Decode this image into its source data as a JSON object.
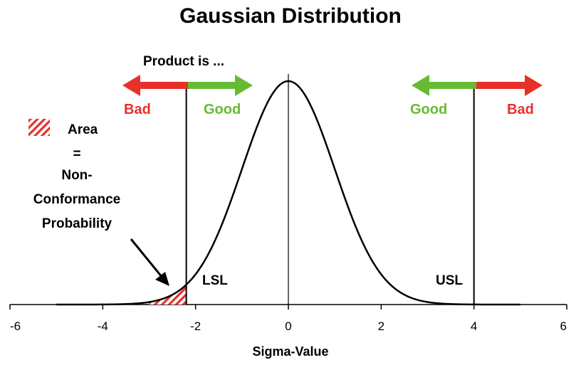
{
  "chart_data": {
    "type": "line",
    "title": "Gaussian Distribution",
    "xlabel": "Sigma-Value",
    "ylabel": "",
    "xlim": [
      -6,
      6
    ],
    "xticks": [
      -6,
      -4,
      -2,
      0,
      2,
      4,
      6
    ],
    "x_tick_labels": [
      "-6",
      "-4",
      "-2",
      "0",
      "2",
      "4",
      "6"
    ],
    "grid": false,
    "curve": {
      "distribution": "normal",
      "mean": 0,
      "std": 1,
      "x_range": [
        -5,
        5
      ]
    },
    "limits": [
      {
        "label": "LSL",
        "x": -2.2
      },
      {
        "label": "USL",
        "x": 4
      }
    ],
    "shaded_tail": {
      "from": -3,
      "to": -2.2,
      "pattern": "red-hatch"
    },
    "annotations": {
      "product_is": "Product is ...",
      "left": {
        "bad": "Bad",
        "good": "Good"
      },
      "right": {
        "good": "Good",
        "bad": "Bad"
      },
      "legend_area_label": "Area",
      "equals": "=",
      "non_conformance_lines": [
        "Non-",
        "Conformance",
        "Probability"
      ]
    },
    "colors": {
      "bad": "#e8302a",
      "good": "#66bb33",
      "curve": "#000000",
      "hatch": "#e8302a"
    }
  }
}
